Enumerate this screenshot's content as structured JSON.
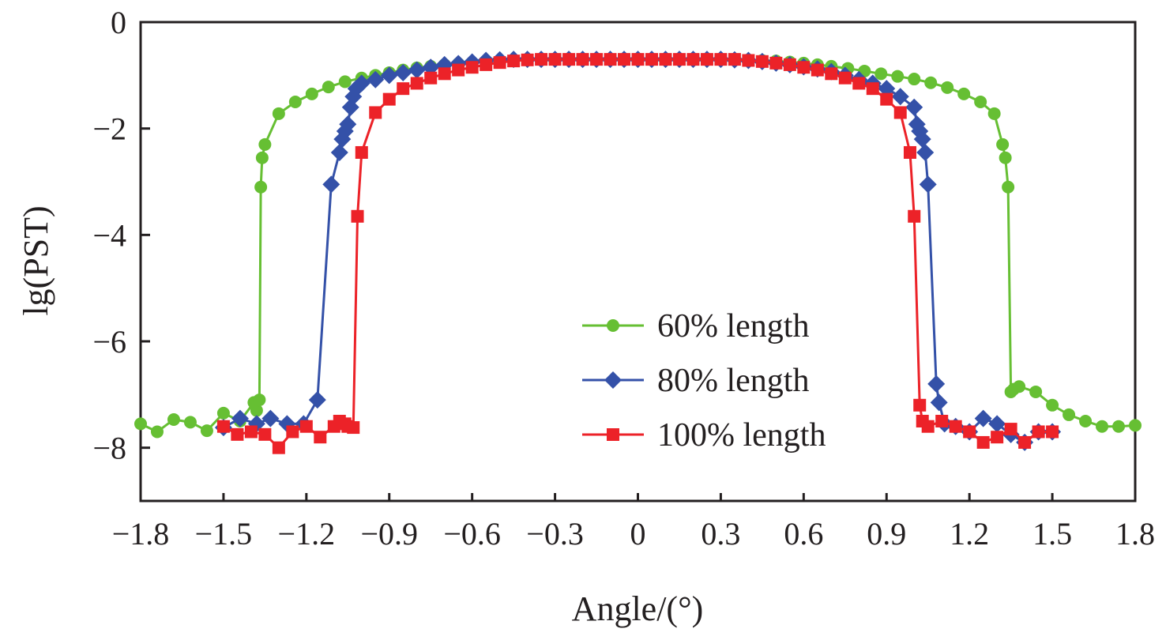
{
  "chart_data": {
    "type": "line",
    "title": "",
    "xlabel": "Angle/(°)",
    "ylabel": "lg(PST)",
    "xlim": [
      -1.8,
      1.8
    ],
    "ylim": [
      -9,
      0
    ],
    "xticks": [
      -1.8,
      -1.5,
      -1.2,
      -0.9,
      -0.6,
      -0.3,
      0,
      0.3,
      0.6,
      0.9,
      1.2,
      1.5,
      1.8
    ],
    "xtick_labels": [
      "−1.8",
      "−1.5",
      "−1.2",
      "−0.9",
      "−0.6",
      "−0.3",
      "0",
      "0.3",
      "0.6",
      "0.9",
      "1.2",
      "1.5",
      "1.8"
    ],
    "yticks": [
      0,
      -2,
      -4,
      -6,
      -8
    ],
    "ytick_labels": [
      "0",
      "−2",
      "−4",
      "−6",
      "−8"
    ],
    "grid": false,
    "legend_position": "lower-right-inside",
    "series": [
      {
        "name": "60% length",
        "color": "#66bf33",
        "marker": "circle",
        "x": [
          -1.8,
          -1.74,
          -1.68,
          -1.62,
          -1.56,
          -1.5,
          -1.44,
          -1.39,
          -1.38,
          -1.37,
          -1.365,
          -1.36,
          -1.35,
          -1.3,
          -1.24,
          -1.18,
          -1.12,
          -1.06,
          -1.0,
          -0.95,
          -0.9,
          -0.85,
          -0.8,
          -0.75,
          -0.7,
          -0.65,
          -0.6,
          -0.55,
          -0.5,
          -0.45,
          -0.4,
          -0.35,
          -0.3,
          -0.25,
          -0.2,
          -0.15,
          -0.1,
          -0.05,
          0,
          0.05,
          0.1,
          0.15,
          0.2,
          0.25,
          0.3,
          0.35,
          0.4,
          0.45,
          0.5,
          0.55,
          0.6,
          0.65,
          0.7,
          0.76,
          0.82,
          0.88,
          0.94,
          1.0,
          1.06,
          1.12,
          1.18,
          1.24,
          1.29,
          1.32,
          1.33,
          1.34,
          1.35,
          1.36,
          1.38,
          1.44,
          1.5,
          1.56,
          1.62,
          1.68,
          1.74,
          1.8
        ],
        "y": [
          -7.55,
          -7.7,
          -7.47,
          -7.52,
          -7.68,
          -7.35,
          -7.5,
          -7.15,
          -7.3,
          -7.1,
          -3.1,
          -2.55,
          -2.3,
          -1.72,
          -1.5,
          -1.35,
          -1.22,
          -1.12,
          -1.05,
          -1.0,
          -0.95,
          -0.9,
          -0.86,
          -0.83,
          -0.8,
          -0.78,
          -0.76,
          -0.74,
          -0.72,
          -0.71,
          -0.7,
          -0.7,
          -0.7,
          -0.7,
          -0.7,
          -0.7,
          -0.7,
          -0.7,
          -0.7,
          -0.7,
          -0.7,
          -0.7,
          -0.7,
          -0.7,
          -0.7,
          -0.7,
          -0.71,
          -0.72,
          -0.73,
          -0.75,
          -0.77,
          -0.8,
          -0.83,
          -0.87,
          -0.92,
          -0.97,
          -1.02,
          -1.07,
          -1.14,
          -1.23,
          -1.35,
          -1.5,
          -1.72,
          -2.3,
          -2.55,
          -3.1,
          -6.95,
          -6.9,
          -6.85,
          -6.95,
          -7.2,
          -7.38,
          -7.5,
          -7.6,
          -7.6,
          -7.58
        ]
      },
      {
        "name": "80% length",
        "color": "#3451a8",
        "marker": "diamond",
        "x": [
          -1.5,
          -1.44,
          -1.38,
          -1.33,
          -1.27,
          -1.21,
          -1.16,
          -1.11,
          -1.08,
          -1.07,
          -1.06,
          -1.05,
          -1.04,
          -1.03,
          -1.02,
          -1.0,
          -0.95,
          -0.9,
          -0.85,
          -0.8,
          -0.75,
          -0.7,
          -0.65,
          -0.6,
          -0.55,
          -0.5,
          -0.45,
          -0.4,
          -0.35,
          -0.3,
          -0.25,
          -0.2,
          -0.15,
          -0.1,
          -0.05,
          0,
          0.05,
          0.1,
          0.15,
          0.2,
          0.25,
          0.3,
          0.35,
          0.4,
          0.45,
          0.5,
          0.55,
          0.6,
          0.65,
          0.7,
          0.75,
          0.8,
          0.85,
          0.9,
          0.95,
          1.0,
          1.01,
          1.02,
          1.03,
          1.04,
          1.05,
          1.08,
          1.09,
          1.11,
          1.15,
          1.2,
          1.25,
          1.3,
          1.35,
          1.4,
          1.45,
          1.5
        ],
        "y": [
          -7.62,
          -7.45,
          -7.55,
          -7.45,
          -7.55,
          -7.55,
          -7.1,
          -3.05,
          -2.45,
          -2.2,
          -2.05,
          -1.92,
          -1.6,
          -1.4,
          -1.25,
          -1.15,
          -1.08,
          -1.0,
          -0.95,
          -0.9,
          -0.85,
          -0.8,
          -0.78,
          -0.75,
          -0.72,
          -0.71,
          -0.7,
          -0.7,
          -0.7,
          -0.7,
          -0.7,
          -0.7,
          -0.7,
          -0.7,
          -0.7,
          -0.7,
          -0.7,
          -0.7,
          -0.7,
          -0.7,
          -0.7,
          -0.7,
          -0.71,
          -0.72,
          -0.74,
          -0.77,
          -0.8,
          -0.84,
          -0.88,
          -0.93,
          -1.0,
          -1.08,
          -1.15,
          -1.25,
          -1.4,
          -1.6,
          -1.92,
          -2.05,
          -2.2,
          -2.45,
          -3.05,
          -6.8,
          -7.15,
          -7.55,
          -7.6,
          -7.7,
          -7.45,
          -7.55,
          -7.75,
          -7.9,
          -7.7,
          -7.7
        ]
      },
      {
        "name": "100% length",
        "color": "#ec2228",
        "marker": "square",
        "x": [
          -1.5,
          -1.45,
          -1.4,
          -1.35,
          -1.3,
          -1.25,
          -1.2,
          -1.15,
          -1.1,
          -1.08,
          -1.06,
          -1.05,
          -1.03,
          -1.015,
          -1.0,
          -0.95,
          -0.9,
          -0.85,
          -0.8,
          -0.75,
          -0.7,
          -0.65,
          -0.6,
          -0.55,
          -0.5,
          -0.45,
          -0.4,
          -0.35,
          -0.3,
          -0.25,
          -0.2,
          -0.15,
          -0.1,
          -0.05,
          0,
          0.05,
          0.1,
          0.15,
          0.2,
          0.25,
          0.3,
          0.35,
          0.4,
          0.45,
          0.5,
          0.55,
          0.6,
          0.65,
          0.7,
          0.75,
          0.8,
          0.85,
          0.9,
          0.95,
          0.985,
          1.0,
          1.02,
          1.03,
          1.05,
          1.1,
          1.15,
          1.2,
          1.25,
          1.3,
          1.35,
          1.4,
          1.45,
          1.5
        ],
        "y": [
          -7.6,
          -7.75,
          -7.7,
          -7.75,
          -8.0,
          -7.7,
          -7.6,
          -7.8,
          -7.6,
          -7.5,
          -7.55,
          -7.6,
          -7.62,
          -3.65,
          -2.45,
          -1.7,
          -1.45,
          -1.25,
          -1.15,
          -1.05,
          -0.97,
          -0.9,
          -0.85,
          -0.8,
          -0.76,
          -0.73,
          -0.71,
          -0.7,
          -0.7,
          -0.7,
          -0.7,
          -0.7,
          -0.7,
          -0.7,
          -0.7,
          -0.7,
          -0.7,
          -0.7,
          -0.7,
          -0.7,
          -0.7,
          -0.7,
          -0.72,
          -0.74,
          -0.77,
          -0.8,
          -0.85,
          -0.9,
          -0.97,
          -1.05,
          -1.15,
          -1.25,
          -1.45,
          -1.7,
          -2.45,
          -3.65,
          -7.2,
          -7.5,
          -7.6,
          -7.5,
          -7.6,
          -7.7,
          -7.9,
          -7.8,
          -7.65,
          -7.9,
          -7.7,
          -7.7
        ]
      }
    ]
  }
}
